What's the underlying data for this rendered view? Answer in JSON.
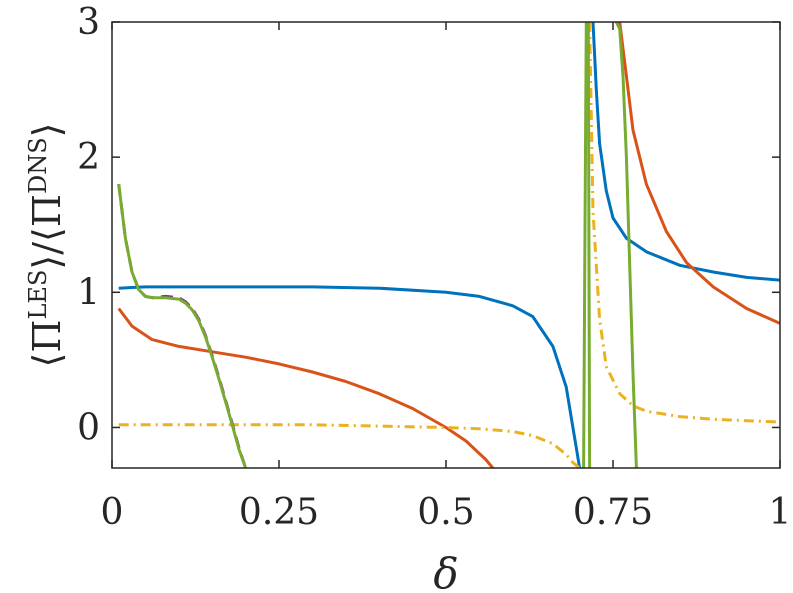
{
  "chart_data": {
    "type": "line",
    "xlabel": "δ",
    "ylabel": {
      "open": "⟨",
      "pi": "Π",
      "les": "LES",
      "close_slash": "⟩/⟨",
      "dns": "DNS",
      "close": "⟩"
    },
    "xlim": [
      0,
      1
    ],
    "ylim": [
      -0.3,
      3
    ],
    "xticks": [
      0,
      0.25,
      0.5,
      0.75,
      1
    ],
    "xtick_labels": [
      "0",
      "0.25",
      "0.5",
      "0.75",
      "1"
    ],
    "yticks": [
      0,
      1,
      2,
      3
    ],
    "ytick_labels": [
      "0",
      "1",
      "2",
      "3"
    ],
    "grid": false,
    "legend": "none",
    "series": [
      {
        "color": "#0072BD",
        "dash": "solid",
        "x": [
          0.01,
          0.05,
          0.1,
          0.2,
          0.3,
          0.4,
          0.5,
          0.55,
          0.6,
          0.63,
          0.66,
          0.68,
          0.69,
          0.695,
          0.7
        ],
        "y": [
          1.03,
          1.04,
          1.04,
          1.04,
          1.04,
          1.03,
          1.0,
          0.97,
          0.9,
          0.82,
          0.6,
          0.3,
          0.0,
          -0.15,
          -0.3
        ],
        "x2": [
          0.72,
          0.725,
          0.73,
          0.74,
          0.75,
          0.77,
          0.8,
          0.85,
          0.9,
          0.95,
          1.0
        ],
        "y2": [
          3.0,
          2.5,
          2.1,
          1.75,
          1.55,
          1.4,
          1.3,
          1.2,
          1.15,
          1.11,
          1.09
        ]
      },
      {
        "color": "#D95319",
        "dash": "solid",
        "x": [
          0.01,
          0.03,
          0.06,
          0.1,
          0.15,
          0.2,
          0.25,
          0.3,
          0.35,
          0.4,
          0.45,
          0.5,
          0.53,
          0.56,
          0.57
        ],
        "y": [
          0.88,
          0.75,
          0.65,
          0.6,
          0.56,
          0.52,
          0.47,
          0.41,
          0.34,
          0.25,
          0.14,
          0.0,
          -0.1,
          -0.24,
          -0.3
        ],
        "x2": [
          0.76,
          0.77,
          0.78,
          0.8,
          0.83,
          0.86,
          0.9,
          0.95,
          1.0
        ],
        "y2": [
          3.0,
          2.6,
          2.2,
          1.8,
          1.45,
          1.22,
          1.04,
          0.88,
          0.77
        ]
      },
      {
        "color": "#EDB120",
        "dash": "dashdot",
        "x": [
          0.01,
          0.1,
          0.2,
          0.3,
          0.4,
          0.5,
          0.55,
          0.6,
          0.63,
          0.66,
          0.68,
          0.69,
          0.7
        ],
        "y": [
          0.02,
          0.02,
          0.02,
          0.02,
          0.01,
          0.0,
          -0.01,
          -0.03,
          -0.06,
          -0.12,
          -0.2,
          -0.26,
          -0.3
        ],
        "x2": [
          0.715,
          0.72,
          0.73,
          0.74,
          0.76,
          0.78,
          0.8,
          0.85,
          0.9,
          0.95,
          1.0
        ],
        "y2": [
          3.0,
          1.6,
          0.8,
          0.45,
          0.25,
          0.16,
          0.12,
          0.08,
          0.06,
          0.05,
          0.04
        ]
      },
      {
        "color": "#7E2F8E",
        "dash": "dashed",
        "x": [
          0.01,
          0.02,
          0.03,
          0.04,
          0.05,
          0.06,
          0.08,
          0.1,
          0.11,
          0.12,
          0.13,
          0.14,
          0.15,
          0.16,
          0.17,
          0.18,
          0.19,
          0.2
        ],
        "y": [
          1.8,
          1.4,
          1.15,
          1.02,
          0.97,
          0.96,
          0.97,
          0.96,
          0.93,
          0.88,
          0.8,
          0.68,
          0.53,
          0.37,
          0.2,
          0.03,
          -0.15,
          -0.3
        ]
      },
      {
        "color": "#77AC30",
        "dash": "solid",
        "x": [
          0.01,
          0.02,
          0.03,
          0.04,
          0.05,
          0.06,
          0.08,
          0.1,
          0.11,
          0.12,
          0.13,
          0.14,
          0.15,
          0.16,
          0.17,
          0.18,
          0.19,
          0.2
        ],
        "y": [
          1.8,
          1.4,
          1.15,
          1.02,
          0.97,
          0.96,
          0.96,
          0.95,
          0.92,
          0.87,
          0.79,
          0.67,
          0.52,
          0.36,
          0.19,
          0.02,
          -0.16,
          -0.3
        ],
        "x2": [
          0.706,
          0.708,
          0.71
        ],
        "y2": [
          -0.3,
          1.35,
          3.0
        ],
        "x3": [
          0.713,
          0.715
        ],
        "y3": [
          3.0,
          -0.3
        ],
        "x4": [
          0.755,
          0.76,
          0.765,
          0.77,
          0.775,
          0.78,
          0.785
        ],
        "y4": [
          3.0,
          2.95,
          2.6,
          2.0,
          1.2,
          0.4,
          -0.3
        ]
      }
    ]
  }
}
